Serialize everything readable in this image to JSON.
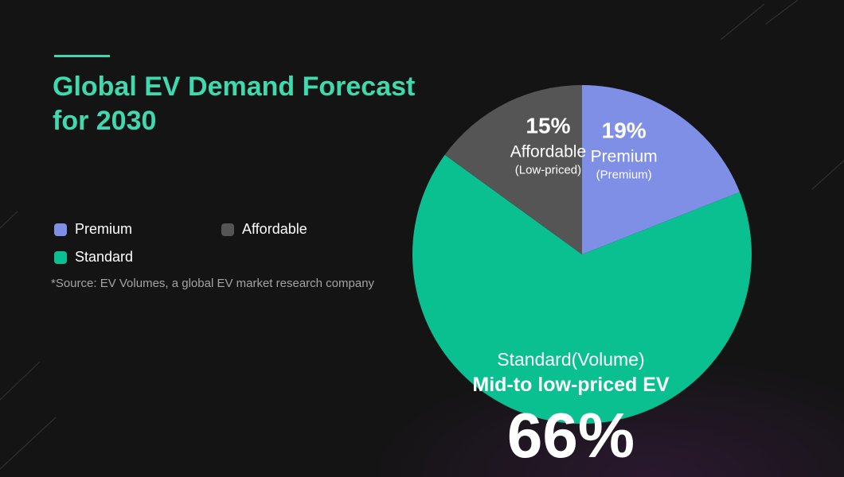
{
  "chart_data": {
    "type": "pie",
    "title_lines": [
      "Global EV Demand Forecast",
      "for 2030"
    ],
    "slices": [
      {
        "name": "Premium",
        "value": 19,
        "percent_label": "19%",
        "label": "Premium",
        "sublabel": "(Premium)",
        "color": "#7f8fe6"
      },
      {
        "name": "Standard",
        "value": 66,
        "percent_label": "66%",
        "label": "Standard(Volume)",
        "sublabel": "Mid-to low-priced EV",
        "color": "#0abf90"
      },
      {
        "name": "Affordable",
        "value": 15,
        "percent_label": "15%",
        "label": "Affordable",
        "sublabel": "(Low-priced)",
        "color": "#555555"
      }
    ],
    "legend": [
      {
        "label": "Premium",
        "color": "#7f8fe6"
      },
      {
        "label": "Affordable",
        "color": "#555555"
      },
      {
        "label": "Standard",
        "color": "#0abf90"
      }
    ],
    "legend_position": "left"
  },
  "source_note": "*Source: EV Volumes, a global EV market research company",
  "colors": {
    "background": "#141414",
    "accent": "#3fd9ad"
  }
}
